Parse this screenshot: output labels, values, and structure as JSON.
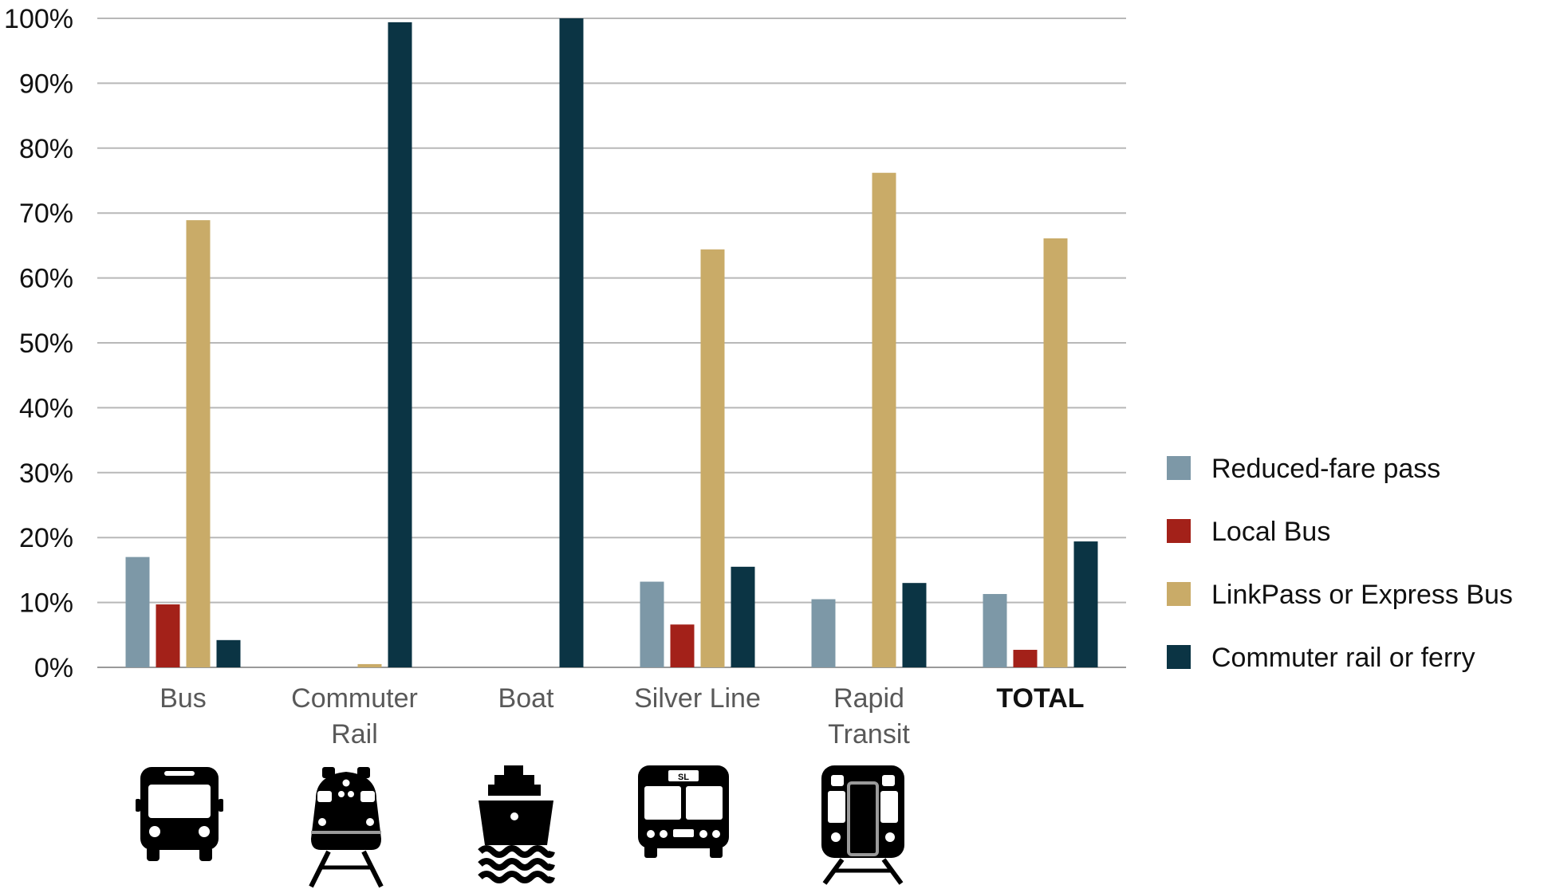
{
  "chart_data": {
    "type": "bar",
    "categories": [
      "Bus",
      "Commuter Rail",
      "Boat",
      "Silver Line",
      "Rapid Transit",
      "TOTAL"
    ],
    "category_lines": [
      [
        "Bus"
      ],
      [
        "Commuter",
        "Rail"
      ],
      [
        "Boat"
      ],
      [
        "Silver Line"
      ],
      [
        "Rapid",
        "Transit"
      ],
      [
        "TOTAL"
      ]
    ],
    "category_bold": [
      false,
      false,
      false,
      false,
      false,
      true
    ],
    "category_icons": [
      "bus-icon",
      "commuter-rail-icon",
      "boat-icon",
      "silver-line-bus-icon",
      "rapid-transit-icon",
      null
    ],
    "series": [
      {
        "name": "Reduced-fare pass",
        "color": "#7d98a7",
        "values": [
          17,
          null,
          null,
          13.2,
          10.5,
          11.3
        ]
      },
      {
        "name": "Local Bus",
        "color": "#a32119",
        "values": [
          9.7,
          null,
          null,
          6.6,
          null,
          2.7
        ]
      },
      {
        "name": "LinkPass or Express Bus",
        "color": "#c9ab68",
        "values": [
          68.9,
          0.5,
          null,
          64.4,
          76.2,
          66.1
        ]
      },
      {
        "name": "Commuter rail or ferry",
        "color": "#0b3444",
        "values": [
          4.2,
          99.4,
          100,
          15.5,
          13,
          19.4
        ]
      }
    ],
    "ylim": [
      0,
      100
    ],
    "yticks": [
      "0%",
      "10%",
      "20%",
      "30%",
      "40%",
      "50%",
      "60%",
      "70%",
      "80%",
      "90%",
      "100%"
    ],
    "grid": true,
    "legend_position": "right",
    "icon_label_silver_line": "SL",
    "title": "",
    "xlabel": "",
    "ylabel": ""
  }
}
